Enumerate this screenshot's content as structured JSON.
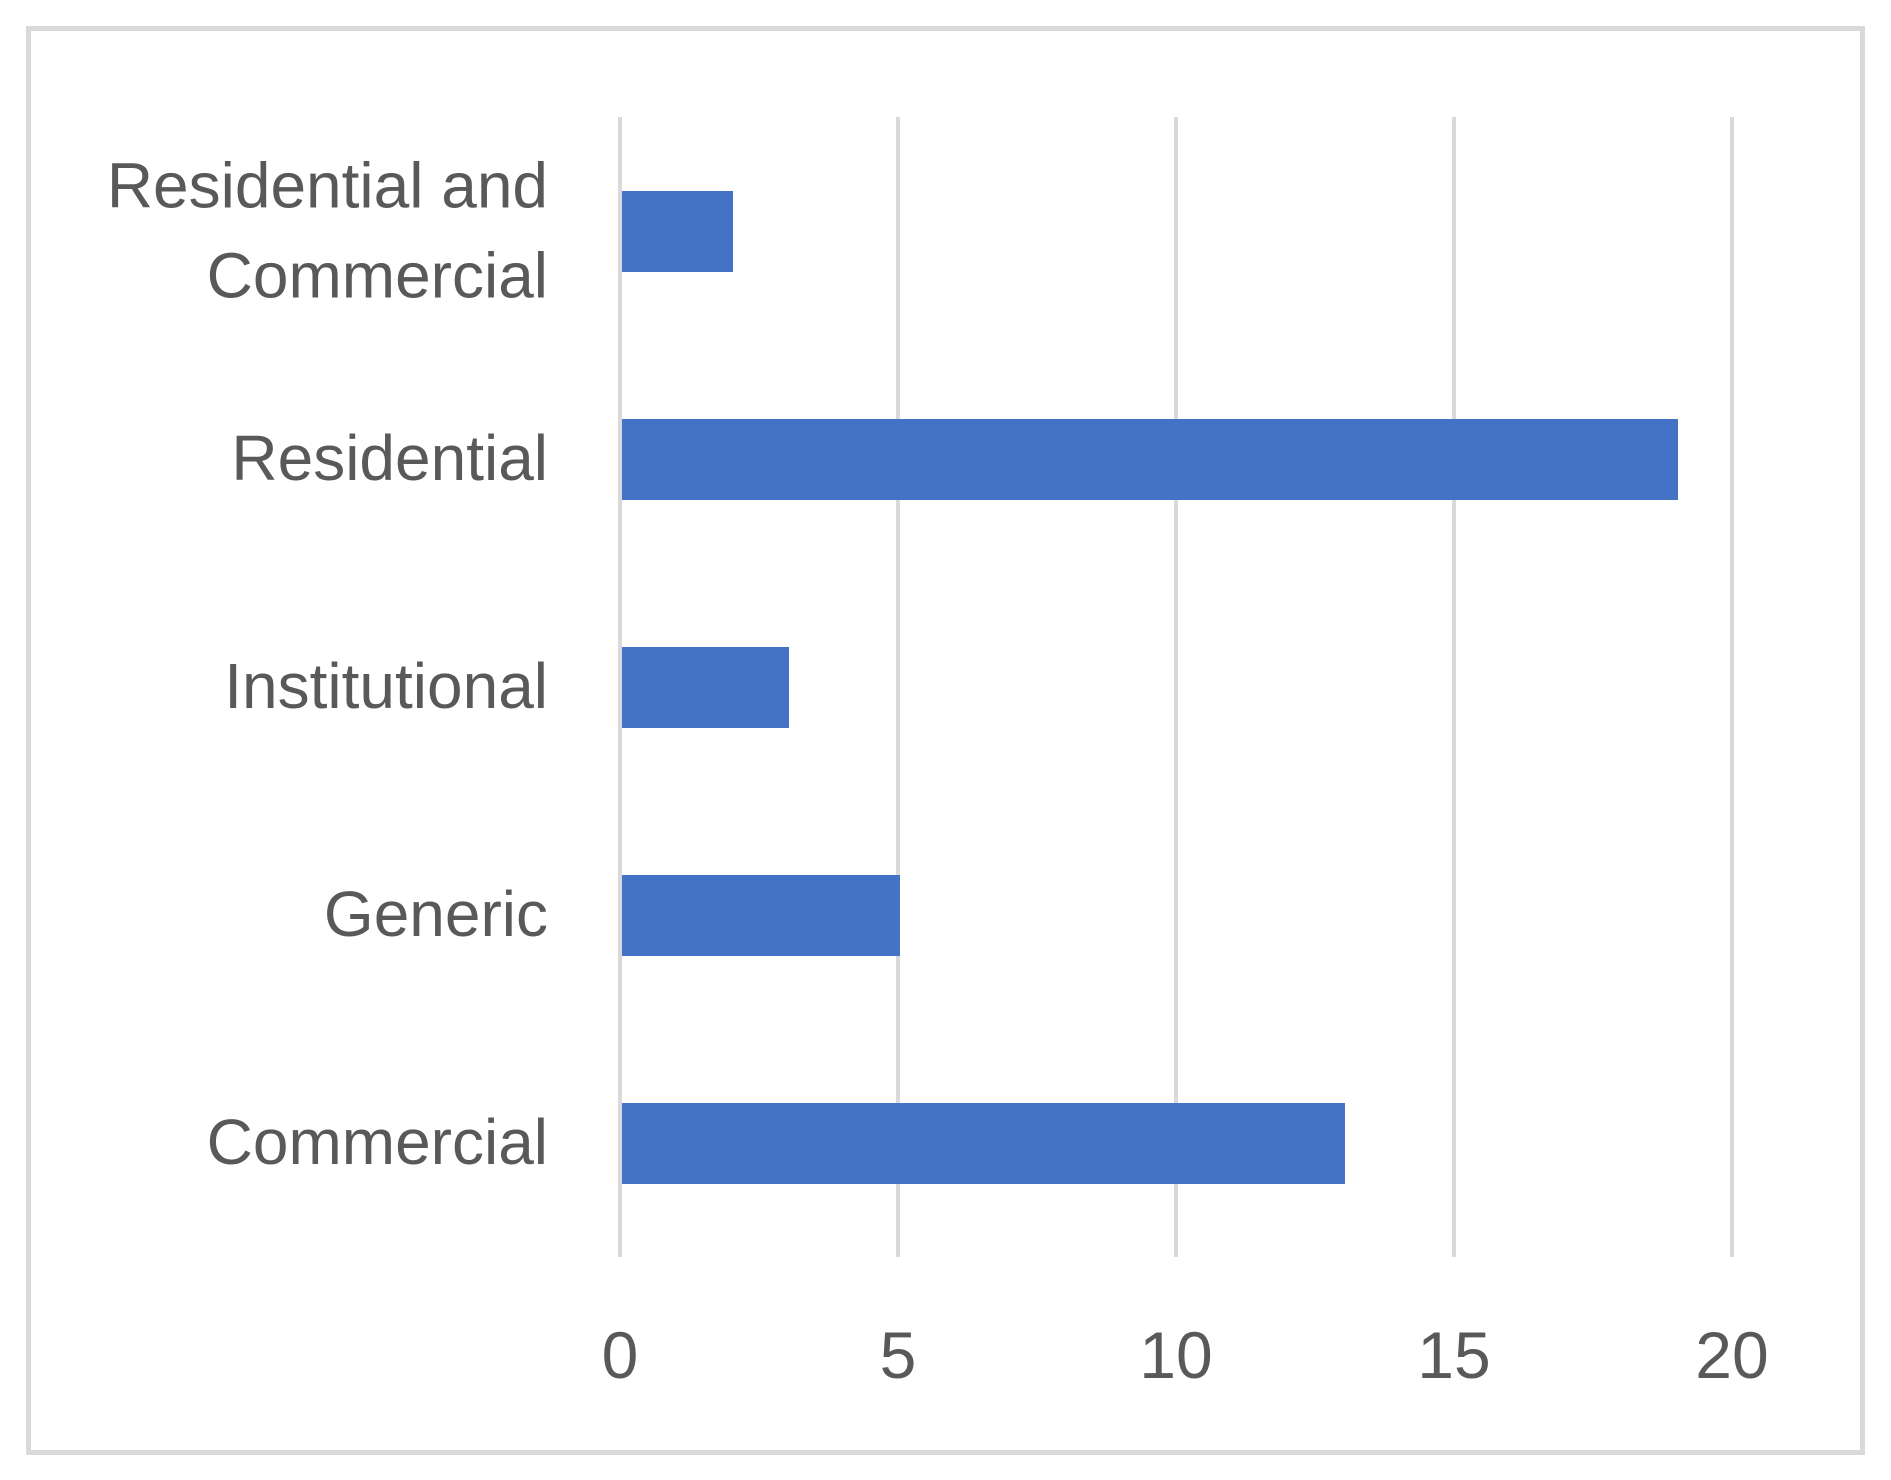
{
  "chart_data": {
    "type": "bar",
    "orientation": "horizontal",
    "title": "",
    "xlabel": "",
    "ylabel": "",
    "categories": [
      "Residential and Commercial",
      "Residential",
      "Institutional",
      "Generic",
      "Commercial"
    ],
    "values": [
      2,
      19,
      3,
      5,
      13
    ],
    "xlim": [
      0,
      20
    ],
    "x_ticks": [
      0,
      5,
      10,
      15,
      20
    ],
    "grid": "vertical-gridlines-on",
    "legend": "none",
    "colors": {
      "bar": "#4472C4",
      "gridline": "#D9D9D9",
      "frame_border": "#D9D9D9",
      "text": "#595959",
      "background": "#FFFFFF"
    }
  }
}
